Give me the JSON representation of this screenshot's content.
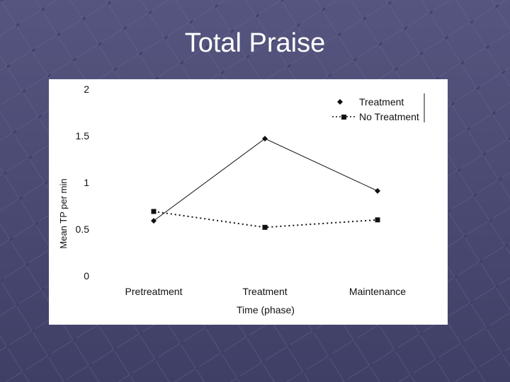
{
  "slide": {
    "title": "Total Praise"
  },
  "colors": {
    "background": "#4f4f7a",
    "panel": "#ffffff",
    "ink": "#111111"
  },
  "chart_data": {
    "type": "line",
    "title": "",
    "categories": [
      "Pretreatment",
      "Treatment",
      "Maintenance"
    ],
    "series": [
      {
        "name": "Treatment",
        "marker": "diamond",
        "line_style": "solid",
        "values": [
          0.59,
          1.47,
          0.91
        ]
      },
      {
        "name": "No Treatment",
        "marker": "square",
        "line_style": "dotted",
        "values": [
          0.69,
          0.52,
          0.6
        ]
      }
    ],
    "xlabel": "Time (phase)",
    "ylabel": "Mean TP per min",
    "ylim": [
      0,
      2
    ],
    "yticks": [
      "0",
      "0.5",
      "1",
      "1.5",
      "2"
    ],
    "grid": false,
    "legend": "top-right"
  }
}
